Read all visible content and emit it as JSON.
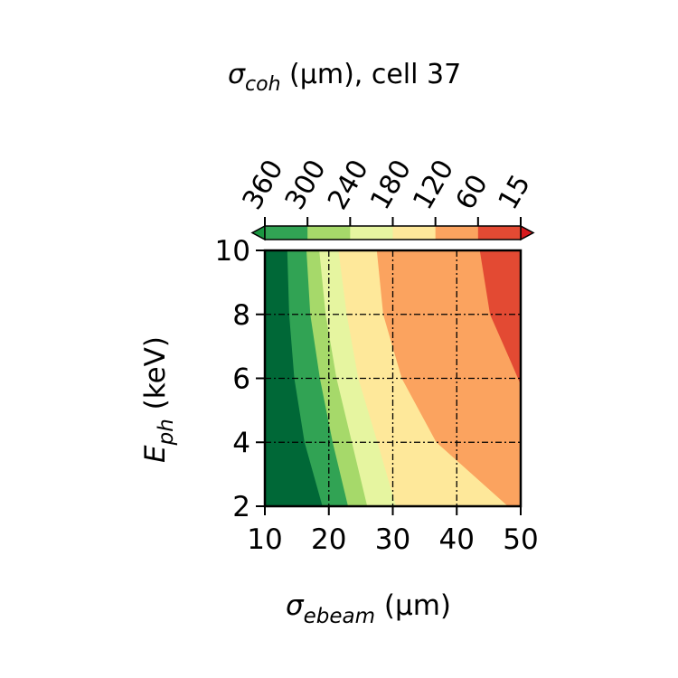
{
  "chart_data": {
    "type": "contourf",
    "colorbar": {
      "label_symbol": "σ",
      "label_sub": "coh",
      "label_rest": " (μm),  cell 37",
      "ticks": [
        "360",
        "300",
        "240",
        "180",
        "120",
        "60",
        "15"
      ],
      "bins": [
        {
          "color": "#31a354",
          "from": "360",
          "to": "300"
        },
        {
          "color": "#a6d96a",
          "from": "300",
          "to": "240"
        },
        {
          "color": "#e6f5a0",
          "from": "240",
          "to": "180"
        },
        {
          "color": "#fee89a",
          "from": "180",
          "to": "120"
        },
        {
          "color": "#fba35f",
          "from": "120",
          "to": "60"
        },
        {
          "color": "#e34a33",
          "from": "60",
          "to": "15"
        }
      ],
      "extend_low_color": "#1a9641",
      "extend_high_color": "#d7191c"
    },
    "x_axis": {
      "label_symbol": "σ",
      "label_sub": "ebeam",
      "label_rest": " (μm)",
      "ticks": [
        10,
        20,
        30,
        40,
        50
      ],
      "range": [
        10,
        50
      ]
    },
    "y_axis": {
      "label_symbol": "E",
      "label_sub": "ph",
      "label_rest": " (keV)",
      "ticks": [
        2,
        4,
        6,
        8,
        10
      ],
      "range": [
        2,
        10
      ]
    },
    "grid": true,
    "contour_levels": [
      {
        "color": "#006837",
        "boundary": [
          [
            13.5,
            10
          ],
          [
            13.8,
            8
          ],
          [
            14.6,
            6
          ],
          [
            16.2,
            4
          ],
          [
            19.0,
            2
          ]
        ]
      },
      {
        "color": "#31a354",
        "boundary": [
          [
            16.5,
            10
          ],
          [
            17.1,
            8
          ],
          [
            18.6,
            6
          ],
          [
            20.6,
            4
          ],
          [
            23.0,
            2
          ]
        ]
      },
      {
        "color": "#a6d96a",
        "boundary": [
          [
            18.5,
            10
          ],
          [
            19.5,
            8
          ],
          [
            21.2,
            6
          ],
          [
            23.6,
            4
          ],
          [
            26.0,
            2
          ]
        ]
      },
      {
        "color": "#e6f5a0",
        "boundary": [
          [
            21.5,
            10
          ],
          [
            22.8,
            8
          ],
          [
            24.6,
            6
          ],
          [
            27.6,
            4
          ],
          [
            30.5,
            2
          ]
        ]
      },
      {
        "color": "#fee89a",
        "boundary": [
          [
            27.5,
            10
          ],
          [
            28.5,
            8
          ],
          [
            31.4,
            6
          ],
          [
            36.8,
            4
          ],
          [
            48.0,
            2
          ]
        ]
      },
      {
        "color": "#fba35f",
        "boundary": [
          [
            43.6,
            10
          ],
          [
            45.2,
            8
          ],
          [
            48.5,
            6.5
          ],
          [
            50,
            5.8
          ]
        ]
      },
      {
        "color": "#e34a33"
      }
    ]
  }
}
